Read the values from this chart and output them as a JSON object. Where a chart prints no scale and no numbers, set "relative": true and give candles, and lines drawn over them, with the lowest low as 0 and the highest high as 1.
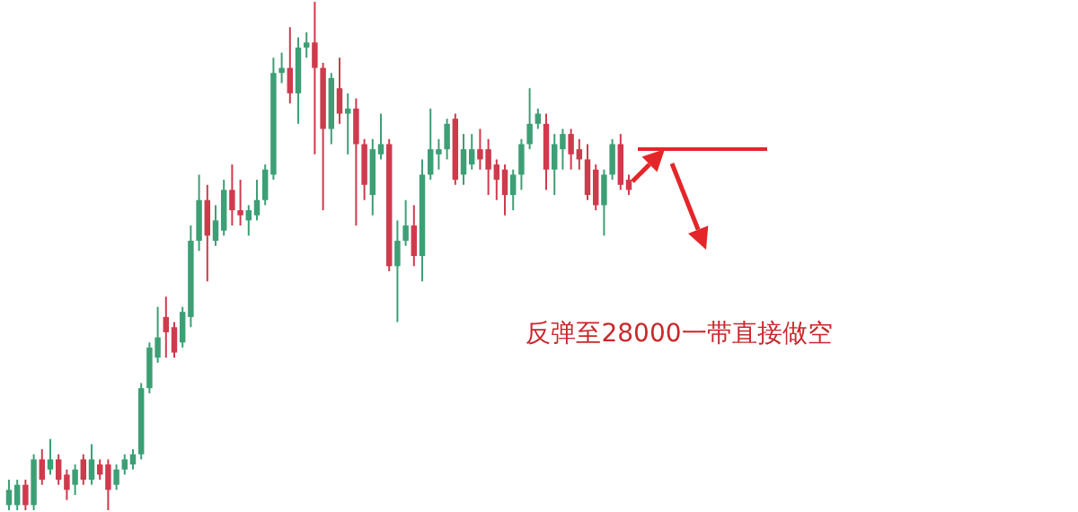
{
  "chart_data": {
    "type": "candlestick",
    "relative": true,
    "tick_labels": false,
    "categories": [
      null,
      null,
      null,
      null,
      null,
      null,
      null,
      null,
      null,
      null,
      null,
      null,
      null,
      null,
      null,
      null,
      null,
      null,
      null,
      null,
      null,
      null,
      null,
      null,
      null,
      null,
      null,
      null,
      null,
      null,
      null,
      null,
      null,
      null,
      null,
      null,
      null,
      null,
      null,
      null,
      null,
      null,
      null,
      null,
      null,
      null,
      null,
      null,
      null,
      null,
      null,
      null,
      null,
      null,
      null,
      null,
      null,
      null,
      null,
      null,
      null,
      null,
      null,
      null,
      null,
      null,
      null,
      null,
      null,
      null,
      null,
      null,
      null,
      null,
      null,
      null
    ],
    "ohlc": [
      [
        0.01,
        0.06,
        0,
        0.04
      ],
      [
        0.01,
        0.06,
        0,
        0.05
      ],
      [
        0.05,
        0.06,
        0,
        0.01
      ],
      [
        0.01,
        0.11,
        0,
        0.1
      ],
      [
        0.1,
        0.12,
        0.05,
        0.06
      ],
      [
        0.08,
        0.14,
        0.07,
        0.1
      ],
      [
        0.1,
        0.11,
        0.05,
        0.06
      ],
      [
        0.07,
        0.08,
        0.02,
        0.04
      ],
      [
        0.05,
        0.09,
        0.03,
        0.08
      ],
      [
        0.1,
        0.11,
        0.05,
        0.06
      ],
      [
        0.06,
        0.13,
        0.05,
        0.1
      ],
      [
        0.09,
        0.1,
        0.06,
        0.07
      ],
      [
        0.09,
        0.1,
        0,
        0.04
      ],
      [
        0.05,
        0.09,
        0.04,
        0.08
      ],
      [
        0.08,
        0.11,
        0.07,
        0.1
      ],
      [
        0.09,
        0.12,
        0.08,
        0.11
      ],
      [
        0.11,
        0.25,
        0.1,
        0.24
      ],
      [
        0.24,
        0.33,
        0.23,
        0.32
      ],
      [
        0.3,
        0.4,
        0.29,
        0.34
      ],
      [
        0.38,
        0.42,
        0.3,
        0.35
      ],
      [
        0.36,
        0.37,
        0.3,
        0.31
      ],
      [
        0.33,
        0.4,
        0.32,
        0.39
      ],
      [
        0.38,
        0.56,
        0.36,
        0.53
      ],
      [
        0.53,
        0.66,
        0.51,
        0.61
      ],
      [
        0.61,
        0.64,
        0.45,
        0.54
      ],
      [
        0.53,
        0.6,
        0.52,
        0.57
      ],
      [
        0.55,
        0.65,
        0.54,
        0.63
      ],
      [
        0.63,
        0.68,
        0.56,
        0.59
      ],
      [
        0.59,
        0.65,
        0.56,
        0.58
      ],
      [
        0.57,
        0.6,
        0.54,
        0.59
      ],
      [
        0.58,
        0.65,
        0.57,
        0.61
      ],
      [
        0.61,
        0.68,
        0.6,
        0.67
      ],
      [
        0.66,
        0.89,
        0.65,
        0.86
      ],
      [
        0.86,
        0.9,
        0.84,
        0.87
      ],
      [
        0.87,
        0.95,
        0.8,
        0.82
      ],
      [
        0.82,
        0.93,
        0.76,
        0.91
      ],
      [
        0.91,
        0.94,
        0.89,
        0.92
      ],
      [
        0.92,
        1,
        0.7,
        0.87
      ],
      [
        0.87,
        0.88,
        0.59,
        0.75
      ],
      [
        0.75,
        0.86,
        0.72,
        0.85
      ],
      [
        0.83,
        0.89,
        0.76,
        0.78
      ],
      [
        0.78,
        0.82,
        0.7,
        0.79
      ],
      [
        0.79,
        0.81,
        0.56,
        0.72
      ],
      [
        0.72,
        0.73,
        0.61,
        0.64
      ],
      [
        0.62,
        0.73,
        0.58,
        0.71
      ],
      [
        0.7,
        0.78,
        0.69,
        0.72
      ],
      [
        0.72,
        0.73,
        0.47,
        0.48
      ],
      [
        0.48,
        0.57,
        0.37,
        0.53
      ],
      [
        0.53,
        0.61,
        0.52,
        0.56
      ],
      [
        0.56,
        0.6,
        0.48,
        0.5
      ],
      [
        0.5,
        0.69,
        0.45,
        0.66
      ],
      [
        0.66,
        0.79,
        0.65,
        0.71
      ],
      [
        0.7,
        0.73,
        0.67,
        0.71
      ],
      [
        0.71,
        0.77,
        0.69,
        0.76
      ],
      [
        0.77,
        0.78,
        0.64,
        0.65
      ],
      [
        0.66,
        0.74,
        0.64,
        0.71
      ],
      [
        0.68,
        0.74,
        0.67,
        0.71
      ],
      [
        0.71,
        0.75,
        0.67,
        0.69
      ],
      [
        0.71,
        0.73,
        0.62,
        0.67
      ],
      [
        0.68,
        0.69,
        0.61,
        0.65
      ],
      [
        0.67,
        0.68,
        0.58,
        0.62
      ],
      [
        0.62,
        0.67,
        0.59,
        0.66
      ],
      [
        0.66,
        0.73,
        0.63,
        0.72
      ],
      [
        0.72,
        0.83,
        0.71,
        0.76
      ],
      [
        0.76,
        0.79,
        0.75,
        0.78
      ],
      [
        0.76,
        0.78,
        0.63,
        0.67
      ],
      [
        0.67,
        0.74,
        0.62,
        0.72
      ],
      [
        0.71,
        0.75,
        0.67,
        0.74
      ],
      [
        0.74,
        0.75,
        0.67,
        0.7
      ],
      [
        0.71,
        0.73,
        0.67,
        0.69
      ],
      [
        0.69,
        0.72,
        0.61,
        0.62
      ],
      [
        0.67,
        0.68,
        0.59,
        0.6
      ],
      [
        0.6,
        0.67,
        0.54,
        0.66
      ],
      [
        0.66,
        0.73,
        0.65,
        0.72
      ],
      [
        0.72,
        0.74,
        0.63,
        0.64
      ],
      [
        0.65,
        0.66,
        0.62,
        0.63
      ]
    ],
    "colors": [
      "#3d9f75",
      "#3d9f75",
      "#cf3a4c",
      "#3d9f75",
      "#cf3a4c",
      "#3d9f75",
      "#cf3a4c",
      "#cf3a4c",
      "#3d9f75",
      "#cf3a4c",
      "#3d9f75",
      "#cf3a4c",
      "#cf3a4c",
      "#3d9f75",
      "#3d9f75",
      "#3d9f75",
      "#3d9f75",
      "#3d9f75",
      "#3d9f75",
      "#cf3a4c",
      "#cf3a4c",
      "#3d9f75",
      "#3d9f75",
      "#3d9f75",
      "#cf3a4c",
      "#3d9f75",
      "#3d9f75",
      "#cf3a4c",
      "#cf3a4c",
      "#3d9f75",
      "#3d9f75",
      "#3d9f75",
      "#3d9f75",
      "#3d9f75",
      "#cf3a4c",
      "#3d9f75",
      "#3d9f75",
      "#cf3a4c",
      "#cf3a4c",
      "#3d9f75",
      "#cf3a4c",
      "#3d9f75",
      "#cf3a4c",
      "#cf3a4c",
      "#3d9f75",
      "#3d9f75",
      "#cf3a4c",
      "#3d9f75",
      "#3d9f75",
      "#cf3a4c",
      "#3d9f75",
      "#3d9f75",
      "#3d9f75",
      "#3d9f75",
      "#cf3a4c",
      "#3d9f75",
      "#3d9f75",
      "#cf3a4c",
      "#cf3a4c",
      "#cf3a4c",
      "#cf3a4c",
      "#3d9f75",
      "#3d9f75",
      "#3d9f75",
      "#3d9f75",
      "#cf3a4c",
      "#3d9f75",
      "#3d9f75",
      "#cf3a4c",
      "#cf3a4c",
      "#cf3a4c",
      "#cf3a4c",
      "#3d9f75",
      "#3d9f75",
      "#cf3a4c",
      "#cf3a4c"
    ],
    "annotations": [
      "反弹至28000一带直接做空"
    ]
  }
}
